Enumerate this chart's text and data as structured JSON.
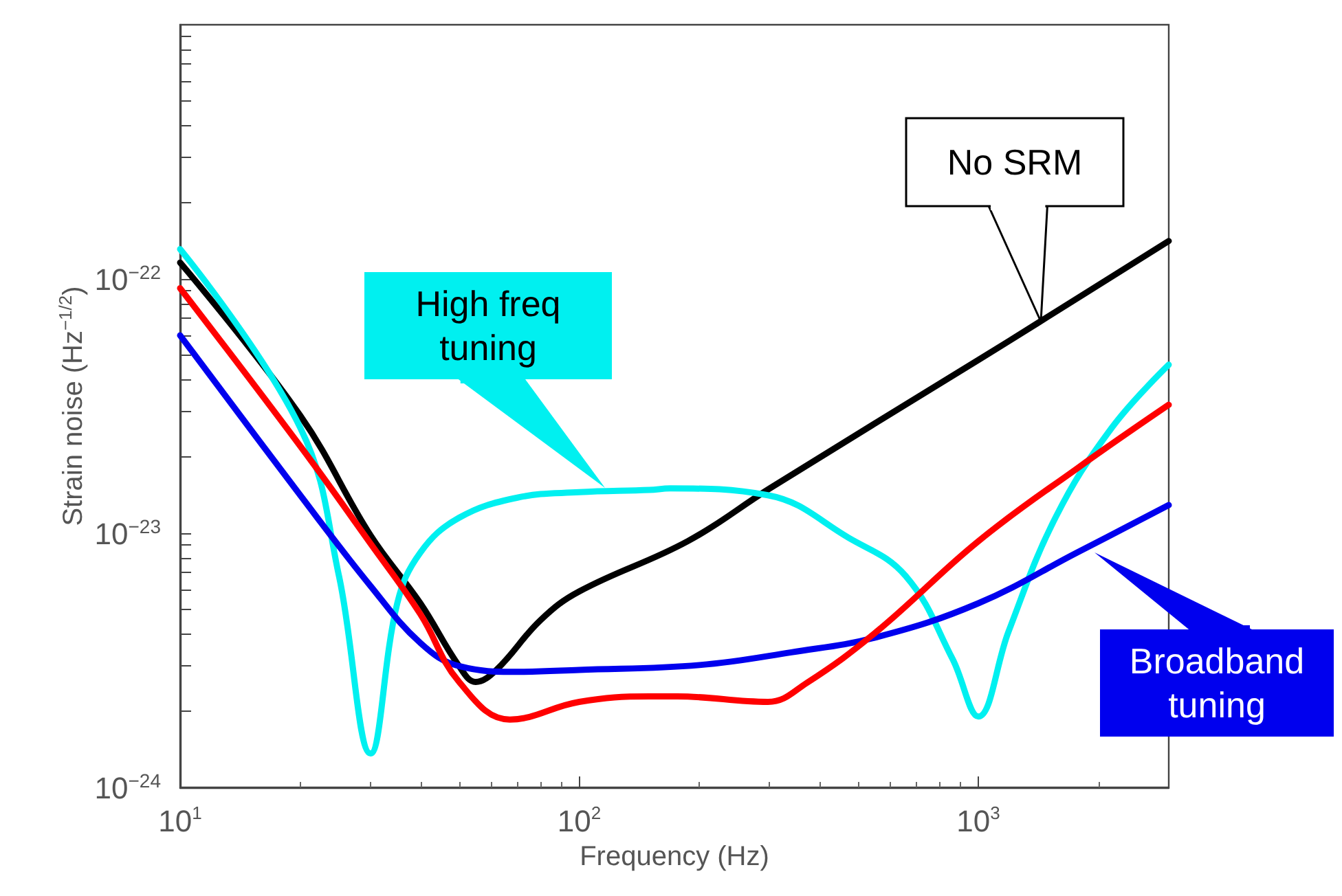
{
  "chart_data": {
    "type": "line",
    "xlabel": "Frequency (Hz)",
    "ylabel": "Strain noise (Hz$^{−1/2}$)",
    "log": "xy",
    "grid": false,
    "xlim": [
      10,
      3000
    ],
    "xticks": [
      {
        "value": 10,
        "label": "10$^{1}$"
      },
      {
        "value": 100,
        "label": "10$^{2}$"
      },
      {
        "value": 1000,
        "label": "10$^{3}$"
      }
    ],
    "ylim": [
      1e-24,
      1e-21
    ],
    "yticks": [
      {
        "value": 1e-24,
        "label": "10$^{−24}$"
      },
      {
        "value": 1e-23,
        "label": "10$^{−23}$"
      },
      {
        "value": 1e-22,
        "label": "10$^{−22}$"
      }
    ],
    "series": [
      {
        "color": "#000000",
        "x": [
          10,
          20,
          30,
          40,
          50,
          55,
          62,
          80,
          100,
          187,
          300,
          1000,
          1407,
          3000
        ],
        "values": [
          1.16e-22,
          2.9e-23,
          9.8e-24,
          5.3e-24,
          3e-24,
          2.6e-24,
          2.9e-24,
          4.55e-24,
          5.9e-24,
          9.3e-24,
          1.5e-23,
          4.8e-23,
          6.7e-23,
          1.41e-22
        ]
      },
      {
        "color": "#00f0f0",
        "x": [
          10,
          20,
          25,
          30,
          35,
          40,
          50,
          70,
          100,
          150,
          169,
          297,
          473,
          657,
          862,
          1000,
          1190,
          1560,
          2160,
          3000
        ],
        "values": [
          1.31e-22,
          2.6e-23,
          6.8e-24,
          1.36e-24,
          5.3e-24,
          8.4e-24,
          1.15e-23,
          1.38e-23,
          1.45e-23,
          1.48e-23,
          1.5e-23,
          1.41e-23,
          9.6e-24,
          6.8e-24,
          3.2e-24,
          1.9e-24,
          4.1e-24,
          1.15e-23,
          2.6e-23,
          4.6e-23
        ]
      },
      {
        "color": "#0000ee",
        "x": [
          10,
          20,
          30,
          40,
          50,
          70,
          100,
          200,
          340,
          556,
          1000,
          1770,
          3000
        ],
        "values": [
          6e-23,
          1.41e-23,
          6.2e-24,
          3.7e-24,
          3e-24,
          2.85e-24,
          2.9e-24,
          3.03e-24,
          3.4e-24,
          3.9e-24,
          5.3e-24,
          8.4e-24,
          1.29e-23
        ]
      },
      {
        "color": "#ff0000",
        "x": [
          10,
          20,
          30,
          40,
          50,
          67,
          100,
          150,
          176,
          297,
          372,
          556,
          1000,
          1770,
          3000
        ],
        "values": [
          9.2e-23,
          2.2e-23,
          9.1e-24,
          4.8e-24,
          2.6e-24,
          1.85e-24,
          2.17e-24,
          2.28e-24,
          2.28e-24,
          2.17e-24,
          2.58e-24,
          4.1e-24,
          9.3e-24,
          1.8e-23,
          3.2e-23
        ]
      }
    ],
    "annotations": [
      "No SRM",
      "High freq\ntuning",
      "Broadband\ntuning"
    ]
  }
}
